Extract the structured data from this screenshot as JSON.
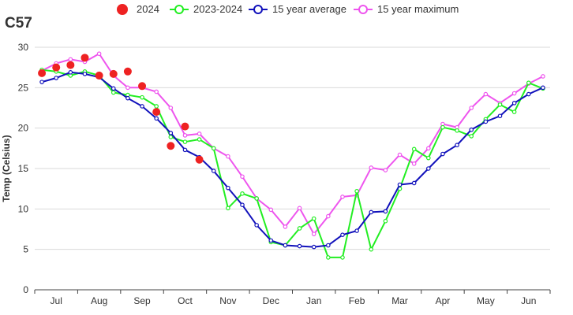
{
  "page": {
    "title": "C57"
  },
  "chart_data": {
    "type": "line",
    "ylabel": "Temp (Celsius)",
    "xlabel": "",
    "ylim": [
      0,
      30
    ],
    "yticks": [
      0,
      5,
      10,
      15,
      20,
      25,
      30
    ],
    "grid": "horizontal",
    "legend_position": "top-center",
    "month_labels": [
      "Jul",
      "Aug",
      "Sep",
      "Oct",
      "Nov",
      "Dec",
      "Jan",
      "Feb",
      "Mar",
      "Apr",
      "May",
      "Jun"
    ],
    "series": [
      {
        "name": "2024",
        "style": "dots",
        "color": "#ee2222",
        "values": [
          26.8,
          27.5,
          27.8,
          28.7,
          26.5,
          26.7,
          27.0,
          25.2,
          22.0,
          17.8,
          20.2,
          16.1
        ]
      },
      {
        "name": "2023-2024",
        "style": "line",
        "color": "#22ee22",
        "values": [
          27.2,
          27.0,
          26.5,
          27.0,
          26.5,
          24.4,
          24.1,
          23.8,
          22.7,
          18.9,
          18.3,
          18.6,
          17.5,
          10.1,
          11.9,
          11.3,
          5.9,
          5.5,
          7.6,
          8.8,
          4.0,
          4.0,
          12.2,
          5.0,
          8.5,
          12.5,
          17.4,
          16.3,
          20.1,
          19.7,
          19.0,
          21.1,
          22.9,
          22.0,
          25.6,
          24.9
        ]
      },
      {
        "name": "15 year average",
        "style": "line",
        "color": "#1111bb",
        "values": [
          25.7,
          26.2,
          26.9,
          26.7,
          26.3,
          24.9,
          23.7,
          22.7,
          21.2,
          19.4,
          17.3,
          16.4,
          14.7,
          12.6,
          10.5,
          8.0,
          6.1,
          5.5,
          5.4,
          5.3,
          5.5,
          6.8,
          7.3,
          9.6,
          9.7,
          13.0,
          13.2,
          15.0,
          16.8,
          17.9,
          19.8,
          20.8,
          21.5,
          23.1,
          24.2,
          25.0
        ]
      },
      {
        "name": "15 year maximum",
        "style": "line",
        "color": "#ee55ee",
        "values": [
          27.1,
          28.0,
          28.5,
          28.2,
          29.2,
          26.5,
          25.0,
          25.0,
          24.5,
          22.5,
          19.1,
          19.3,
          17.5,
          16.5,
          14.0,
          11.3,
          9.9,
          7.8,
          10.1,
          6.9,
          9.1,
          11.5,
          11.7,
          15.1,
          14.8,
          16.7,
          15.6,
          17.5,
          20.5,
          20.1,
          22.5,
          24.2,
          23.1,
          24.3,
          25.5,
          26.4
        ]
      }
    ]
  }
}
